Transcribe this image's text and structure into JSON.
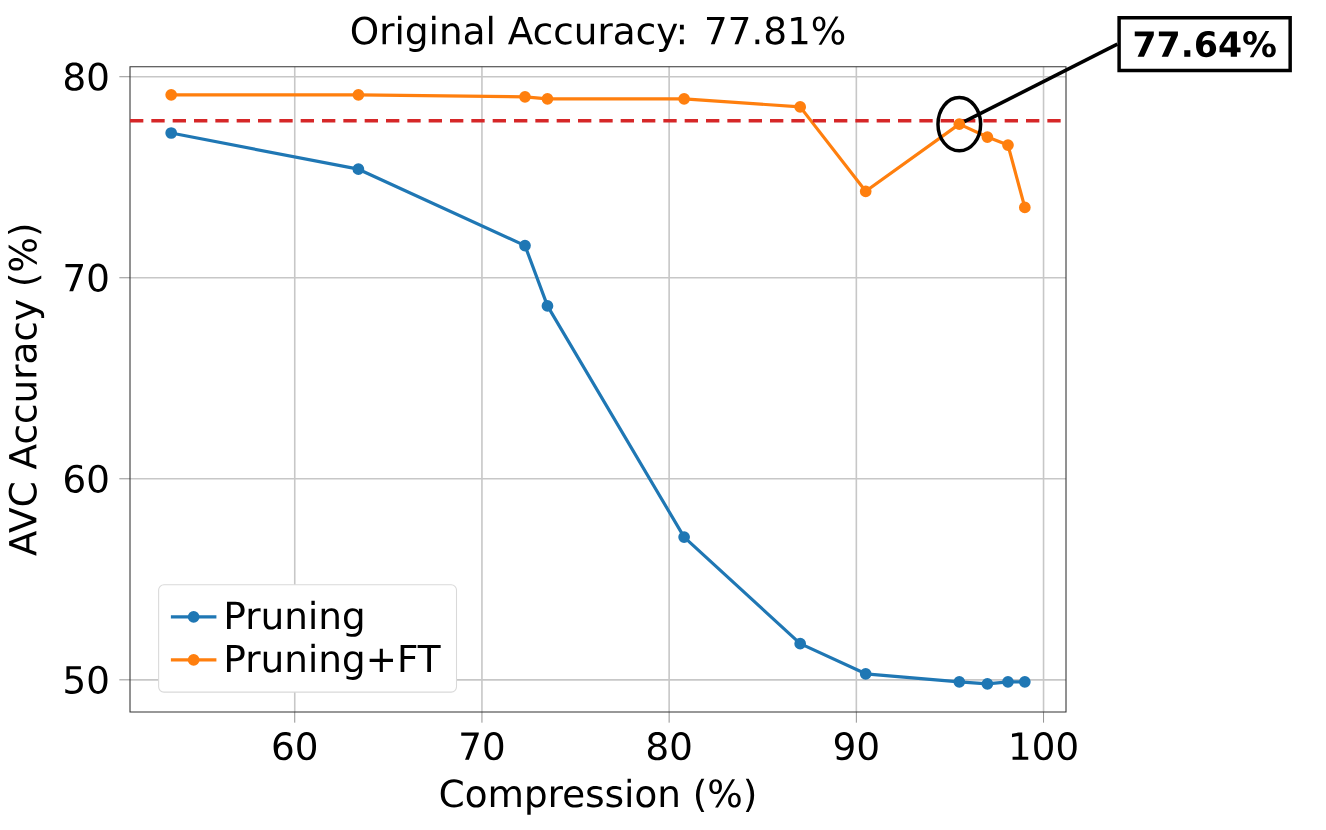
{
  "chart_data": {
    "type": "line",
    "title": "Original Accuracy: 77.81%",
    "xlabel": "Compression (%)",
    "ylabel": "AVC Accuracy (%)",
    "x": [
      53.4,
      63.4,
      72.3,
      73.5,
      80.8,
      87.0,
      90.5,
      95.5,
      97.0,
      98.1,
      99.0
    ],
    "series": [
      {
        "name": "Pruning",
        "color": "#1f77b4",
        "values": [
          77.2,
          75.4,
          71.6,
          68.6,
          57.1,
          51.8,
          50.3,
          49.9,
          49.8,
          49.9,
          49.9
        ]
      },
      {
        "name": "Pruning+FT",
        "color": "#ff7f0e",
        "values": [
          79.1,
          79.1,
          79.0,
          78.9,
          78.9,
          78.5,
          74.3,
          77.64,
          77.0,
          76.6,
          73.5
        ]
      }
    ],
    "xlim": [
      51.2,
      101.2
    ],
    "ylim": [
      48.4,
      80.5
    ],
    "xticks": [
      60,
      70,
      80,
      90,
      100
    ],
    "yticks": [
      50,
      60,
      70,
      80
    ],
    "ref_lines": [
      {
        "axis": "y",
        "value": 77.81,
        "color": "#d62728",
        "line_style": "dashed"
      }
    ],
    "annotations": [
      {
        "text": "77.64%",
        "x": 95.5,
        "y": 77.64
      }
    ],
    "grid": true,
    "legend": "bottom left",
    "marker": "circle",
    "line_style": "solid"
  }
}
